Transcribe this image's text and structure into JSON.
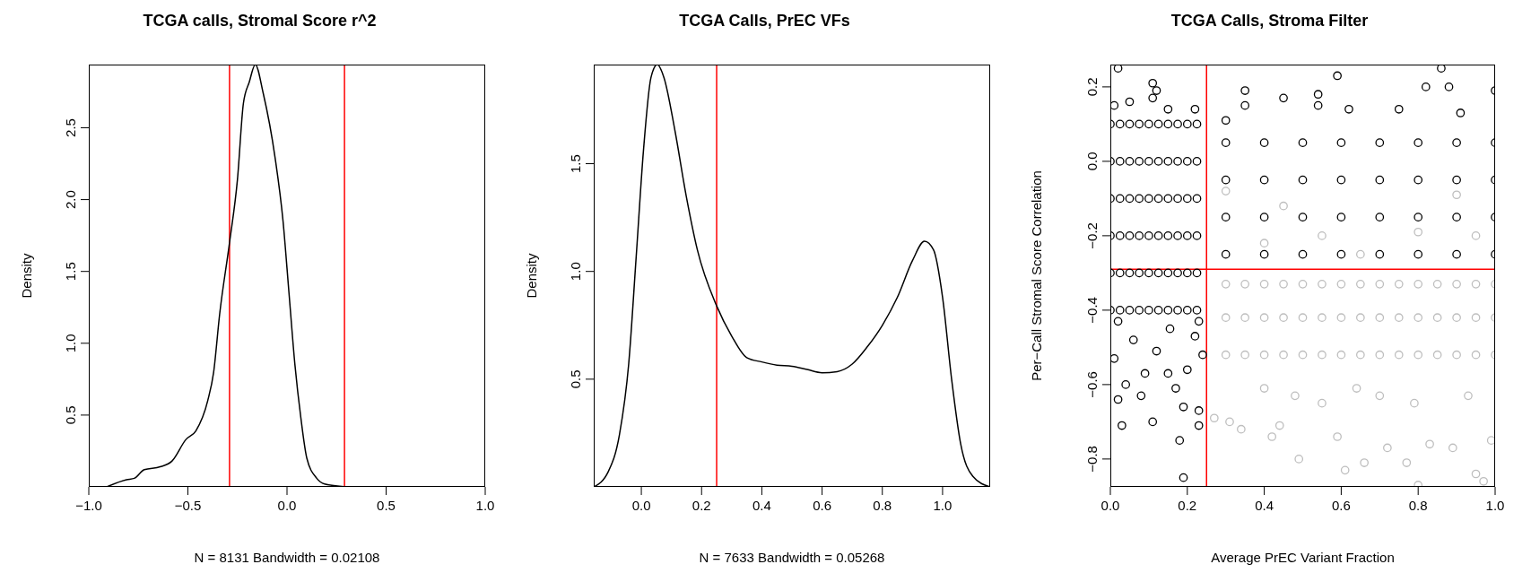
{
  "chart_data": [
    {
      "type": "line",
      "title": "TCGA calls, Stromal Score r^2",
      "xlabel": "N = 8131   Bandwidth = 0.02108",
      "ylabel": "Density",
      "series": [
        {
          "color": "#000000",
          "x": [
            -0.91,
            -0.81,
            -0.77,
            -0.72,
            -0.64,
            -0.58,
            -0.51,
            -0.46,
            -0.4,
            -0.37,
            -0.34,
            -0.29,
            -0.25,
            -0.22,
            -0.19,
            -0.16,
            -0.12,
            -0.06,
            -0.02,
            0.01,
            0.04,
            0.07,
            0.1,
            0.15,
            0.19,
            0.3
          ],
          "values": [
            0,
            0.05,
            0.06,
            0.12,
            0.14,
            0.18,
            0.33,
            0.39,
            0.6,
            0.8,
            1.2,
            1.7,
            2.14,
            2.67,
            2.82,
            2.94,
            2.74,
            2.29,
            1.85,
            1.35,
            0.85,
            0.48,
            0.2,
            0.06,
            0.02,
            0
          ]
        }
      ],
      "xlim": [
        -1,
        1
      ],
      "ylim": [
        0,
        2.94
      ],
      "xticks": [
        {
          "value": -1,
          "label": "−1.0"
        },
        {
          "value": -0.5,
          "label": "−0.5"
        },
        {
          "value": 0,
          "label": "0.0"
        },
        {
          "value": 0.5,
          "label": "0.5"
        },
        {
          "value": 1,
          "label": "1.0"
        }
      ],
      "yticks": [
        {
          "value": 0.5,
          "label": "0.5"
        },
        {
          "value": 1,
          "label": "1.0"
        },
        {
          "value": 1.5,
          "label": "1.5"
        },
        {
          "value": 2,
          "label": "2.0"
        },
        {
          "value": 2.5,
          "label": "2.5"
        }
      ],
      "ref_lines": [
        {
          "axis": "x",
          "value": -0.29,
          "color": "#ff0000"
        },
        {
          "axis": "x",
          "value": 0.29,
          "color": "#ff0000"
        }
      ]
    },
    {
      "type": "line",
      "title": "TCGA Calls, PrEC VFs",
      "xlabel": "N = 7633   Bandwidth = 0.05268",
      "ylabel": "Density",
      "series": [
        {
          "color": "#000000",
          "x": [
            -0.158,
            -0.11,
            -0.073,
            -0.042,
            -0.017,
            0.007,
            0.032,
            0.053,
            0.075,
            0.112,
            0.149,
            0.186,
            0.25,
            0.3,
            0.35,
            0.4,
            0.45,
            0.5,
            0.55,
            0.6,
            0.65,
            0.7,
            0.75,
            0.8,
            0.85,
            0.9,
            0.94,
            0.97,
            1,
            1.03,
            1.06,
            1.1,
            1.158
          ],
          "values": [
            0,
            0.07,
            0.24,
            0.57,
            1.07,
            1.56,
            1.9,
            1.96,
            1.9,
            1.65,
            1.35,
            1.1,
            0.84,
            0.7,
            0.6,
            0.58,
            0.565,
            0.56,
            0.545,
            0.53,
            0.535,
            0.57,
            0.65,
            0.75,
            0.88,
            1.05,
            1.14,
            1.1,
            0.88,
            0.5,
            0.2,
            0.05,
            0
          ]
        }
      ],
      "xlim": [
        -0.158,
        1.158
      ],
      "ylim": [
        0,
        1.96
      ],
      "xticks": [
        {
          "value": 0,
          "label": "0.0"
        },
        0.2,
        0.4,
        0.6,
        0.8,
        {
          "value": 1,
          "label": "1.0"
        }
      ],
      "yticks": [
        {
          "value": 0.5,
          "label": "0.5"
        },
        {
          "value": 1,
          "label": "1.0"
        },
        {
          "value": 1.5,
          "label": "1.5"
        }
      ],
      "ref_lines": [
        {
          "axis": "x",
          "value": 0.25,
          "color": "#ff0000"
        }
      ]
    },
    {
      "type": "scatter",
      "title": "TCGA Calls, Stroma Filter",
      "xlabel": "Average PrEC Variant Fraction",
      "ylabel": "Per−Call Stromal Score Correlation",
      "marker": "circle",
      "series": [
        {
          "color": "#000000",
          "x": [
            0,
            0.025,
            0.05,
            0.075,
            0.1,
            0.125,
            0.15,
            0.175,
            0.2,
            0.225,
            0,
            0.025,
            0.05,
            0.075,
            0.1,
            0.125,
            0.15,
            0.175,
            0.2,
            0.225,
            0,
            0.025,
            0.05,
            0.075,
            0.1,
            0.125,
            0.15,
            0.175,
            0.2,
            0.225,
            0,
            0.025,
            0.05,
            0.075,
            0.1,
            0.125,
            0.15,
            0.175,
            0.2,
            0.225,
            0,
            0.025,
            0.05,
            0.075,
            0.1,
            0.125,
            0.15,
            0.175,
            0.2,
            0.225,
            0,
            0.025,
            0.05,
            0.075,
            0.1,
            0.125,
            0.15,
            0.175,
            0.2,
            0.225,
            0.3,
            0.4,
            0.5,
            0.6,
            0.7,
            0.8,
            0.9,
            1,
            0.3,
            0.4,
            0.5,
            0.6,
            0.7,
            0.8,
            0.9,
            1,
            0.3,
            0.4,
            0.5,
            0.6,
            0.7,
            0.8,
            0.9,
            1,
            0.3,
            0.4,
            0.5,
            0.6,
            0.7,
            0.8,
            0.9,
            1,
            0.02,
            0.11,
            0.12,
            0.11,
            0.05,
            0.01,
            0.22,
            0.15,
            0.35,
            0.35,
            0.45,
            0.54,
            0.54,
            0.59,
            0.82,
            0.86,
            0.88,
            1,
            0.91,
            0.75,
            0.62,
            0.3,
            0.03,
            0.11,
            0.18,
            0.19,
            0.23,
            0.23,
            0.19,
            0.17,
            0.08,
            0.04,
            0.02,
            0.15,
            0.2,
            0.09,
            0.01,
            0.24,
            0.22,
            0.12,
            0.06,
            0.155,
            0.02,
            0.23
          ],
          "values": [
            0.1,
            0.1,
            0.1,
            0.1,
            0.1,
            0.1,
            0.1,
            0.1,
            0.1,
            0.1,
            0,
            0,
            0,
            0,
            0,
            0,
            0,
            0,
            0,
            0,
            -0.1,
            -0.1,
            -0.1,
            -0.1,
            -0.1,
            -0.1,
            -0.1,
            -0.1,
            -0.1,
            -0.1,
            -0.2,
            -0.2,
            -0.2,
            -0.2,
            -0.2,
            -0.2,
            -0.2,
            -0.2,
            -0.2,
            -0.2,
            -0.3,
            -0.3,
            -0.3,
            -0.3,
            -0.3,
            -0.3,
            -0.3,
            -0.3,
            -0.3,
            -0.3,
            -0.4,
            -0.4,
            -0.4,
            -0.4,
            -0.4,
            -0.4,
            -0.4,
            -0.4,
            -0.4,
            -0.4,
            0.05,
            0.05,
            0.05,
            0.05,
            0.05,
            0.05,
            0.05,
            0.05,
            -0.05,
            -0.05,
            -0.05,
            -0.05,
            -0.05,
            -0.05,
            -0.05,
            -0.05,
            -0.15,
            -0.15,
            -0.15,
            -0.15,
            -0.15,
            -0.15,
            -0.15,
            -0.15,
            -0.25,
            -0.25,
            -0.25,
            -0.25,
            -0.25,
            -0.25,
            -0.25,
            -0.25,
            0.25,
            0.21,
            0.19,
            0.17,
            0.16,
            0.15,
            0.14,
            0.14,
            0.19,
            0.15,
            0.17,
            0.18,
            0.15,
            0.23,
            0.2,
            0.25,
            0.2,
            0.19,
            0.13,
            0.14,
            0.14,
            0.11,
            -0.71,
            -0.7,
            -0.75,
            -0.85,
            -0.71,
            -0.67,
            -0.66,
            -0.61,
            -0.63,
            -0.6,
            -0.64,
            -0.57,
            -0.56,
            -0.57,
            -0.53,
            -0.52,
            -0.47,
            -0.51,
            -0.48,
            -0.45,
            -0.43,
            -0.43
          ]
        },
        {
          "color": "#bebebe",
          "x": [
            0.3,
            0.35,
            0.4,
            0.45,
            0.5,
            0.55,
            0.6,
            0.65,
            0.7,
            0.75,
            0.8,
            0.85,
            0.9,
            0.95,
            1,
            0.3,
            0.35,
            0.4,
            0.45,
            0.5,
            0.55,
            0.6,
            0.65,
            0.7,
            0.75,
            0.8,
            0.85,
            0.9,
            0.95,
            1,
            0.3,
            0.35,
            0.4,
            0.45,
            0.5,
            0.55,
            0.6,
            0.65,
            0.7,
            0.75,
            0.8,
            0.85,
            0.9,
            0.95,
            1,
            0.49,
            0.61,
            0.66,
            0.77,
            0.8,
            0.97,
            0.95,
            0.27,
            0.34,
            0.42,
            0.44,
            0.59,
            0.72,
            0.83,
            0.89,
            0.99,
            0.31,
            0.4,
            0.48,
            0.55,
            0.64,
            0.7,
            0.79,
            0.93,
            0.3,
            0.45,
            0.55,
            0.65,
            0.8,
            0.9,
            0.95,
            0.4
          ],
          "values": [
            -0.33,
            -0.33,
            -0.33,
            -0.33,
            -0.33,
            -0.33,
            -0.33,
            -0.33,
            -0.33,
            -0.33,
            -0.33,
            -0.33,
            -0.33,
            -0.33,
            -0.33,
            -0.42,
            -0.42,
            -0.42,
            -0.42,
            -0.42,
            -0.42,
            -0.42,
            -0.42,
            -0.42,
            -0.42,
            -0.42,
            -0.42,
            -0.42,
            -0.42,
            -0.42,
            -0.52,
            -0.52,
            -0.52,
            -0.52,
            -0.52,
            -0.52,
            -0.52,
            -0.52,
            -0.52,
            -0.52,
            -0.52,
            -0.52,
            -0.52,
            -0.52,
            -0.52,
            -0.8,
            -0.83,
            -0.81,
            -0.81,
            -0.87,
            -0.86,
            -0.84,
            -0.69,
            -0.72,
            -0.74,
            -0.71,
            -0.74,
            -0.77,
            -0.76,
            -0.77,
            -0.75,
            -0.7,
            -0.61,
            -0.63,
            -0.65,
            -0.61,
            -0.63,
            -0.65,
            -0.63,
            -0.08,
            -0.12,
            -0.2,
            -0.25,
            -0.19,
            -0.09,
            -0.2,
            -0.22
          ]
        }
      ],
      "xlim": [
        0,
        1
      ],
      "ylim": [
        -0.875,
        0.26
      ],
      "xticks": [
        {
          "value": 0,
          "label": "0.0"
        },
        0.2,
        0.4,
        0.6,
        0.8,
        {
          "value": 1,
          "label": "1.0"
        }
      ],
      "yticks": [
        {
          "value": -0.8,
          "label": "−0.8"
        },
        {
          "value": -0.6,
          "label": "−0.6"
        },
        {
          "value": -0.4,
          "label": "−0.4"
        },
        {
          "value": -0.2,
          "label": "−0.2"
        },
        {
          "value": 0,
          "label": "0.0"
        },
        0.2
      ],
      "ref_lines": [
        {
          "axis": "x",
          "value": 0.25,
          "color": "#ff0000"
        },
        {
          "axis": "y",
          "value": -0.29,
          "color": "#ff0000"
        }
      ]
    }
  ]
}
